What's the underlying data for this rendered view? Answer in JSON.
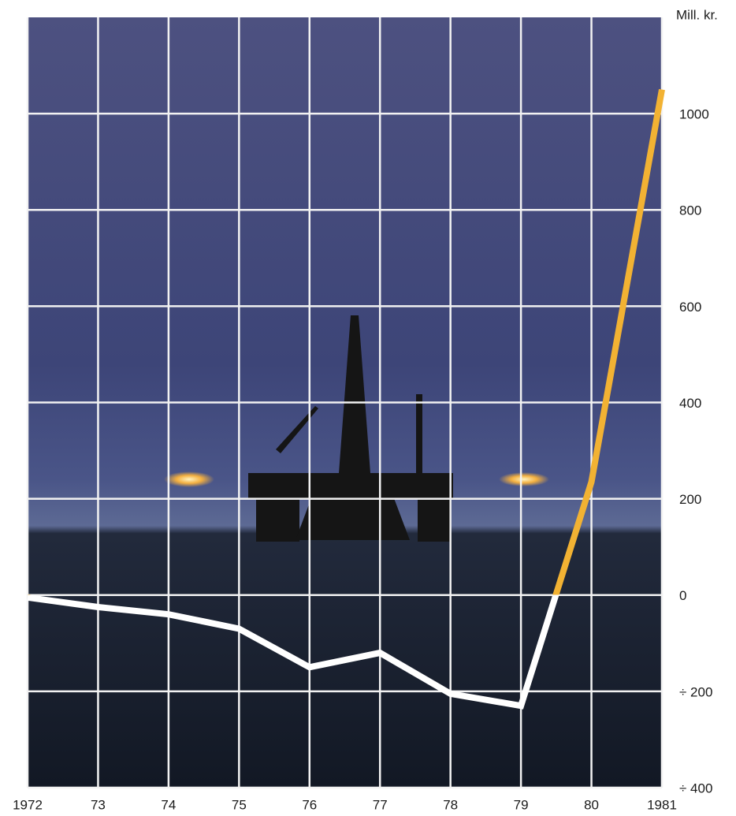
{
  "chart_data": {
    "type": "line",
    "y_label": "Mill. kr.",
    "x": [
      1972,
      1973,
      1974,
      1975,
      1976,
      1977,
      1978,
      1979,
      1980,
      1981
    ],
    "series": [
      {
        "color": "#ffffff",
        "color_above_zero": "#f2b233",
        "values": [
          -5,
          -25,
          -40,
          -70,
          -150,
          -120,
          -205,
          -230,
          235,
          1050
        ]
      }
    ],
    "xlim": [
      1972,
      1981
    ],
    "xticks": [
      {
        "value": 1972,
        "label": "1972"
      },
      {
        "value": 1973,
        "label": "73"
      },
      {
        "value": 1974,
        "label": "74"
      },
      {
        "value": 1975,
        "label": "75"
      },
      {
        "value": 1976,
        "label": "76"
      },
      {
        "value": 1977,
        "label": "77"
      },
      {
        "value": 1978,
        "label": "78"
      },
      {
        "value": 1979,
        "label": "79"
      },
      {
        "value": 1980,
        "label": "80"
      },
      {
        "value": 1981,
        "label": "1981"
      }
    ],
    "ylim": [
      -400,
      1200
    ],
    "yticks": [
      {
        "value": -400,
        "label": "÷ 400"
      },
      {
        "value": -200,
        "label": "÷ 200"
      },
      0,
      200,
      400,
      600,
      800,
      1000
    ],
    "grid": true,
    "grid_color": "#f2f2f2"
  }
}
